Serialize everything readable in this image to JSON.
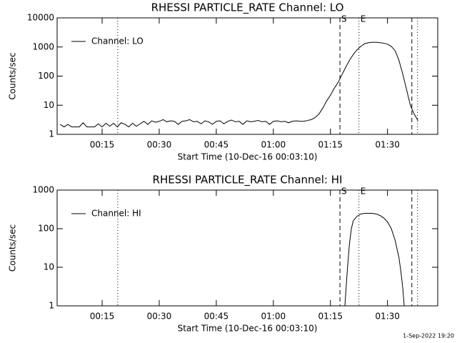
{
  "chart_data": [
    {
      "type": "line",
      "title": "RHESSI PARTICLE_RATE Channel: LO",
      "x_label": "Start Time (10-Dec-16 00:03:10)",
      "y_label": "Counts/sec",
      "log_y": true,
      "legend": "upper left",
      "xlim": [
        3.17,
        103.2
      ],
      "ylim": [
        1,
        10000
      ],
      "xticks": [
        {
          "value": 15,
          "label": "00:15"
        },
        {
          "value": 30,
          "label": "00:30"
        },
        {
          "value": 45,
          "label": "00:45"
        },
        {
          "value": 60,
          "label": "01:00"
        },
        {
          "value": 75,
          "label": "01:15"
        },
        {
          "value": 90,
          "label": "01:30"
        }
      ],
      "yticks": [
        1,
        10,
        100,
        1000,
        10000
      ],
      "markers": [
        {
          "x": 19.1,
          "style": "dotted"
        },
        {
          "x": 77.5,
          "style": "dashed",
          "label": "S"
        },
        {
          "x": 82.5,
          "style": "dotted",
          "label": "E"
        },
        {
          "x": 96.4,
          "style": "dashed"
        },
        {
          "x": 97.9,
          "style": "dotted"
        }
      ],
      "x": [
        4,
        5,
        6,
        7,
        8,
        9,
        10,
        11,
        12,
        13,
        14,
        15,
        16,
        17,
        18,
        19,
        20,
        21,
        22,
        23,
        24,
        25,
        26,
        27,
        28,
        29,
        30,
        31,
        32,
        33,
        34,
        35,
        36,
        37,
        38,
        39,
        40,
        41,
        42,
        43,
        44,
        45,
        46,
        47,
        48,
        49,
        50,
        51,
        52,
        53,
        54,
        55,
        56,
        57,
        58,
        59,
        60,
        61,
        62,
        63,
        64,
        65,
        66,
        67,
        68,
        69,
        70,
        71,
        72,
        73,
        74,
        75,
        76,
        77,
        78,
        79,
        80,
        81,
        82,
        83,
        84,
        85,
        86,
        87,
        88,
        89,
        90,
        91,
        92,
        93,
        94,
        95,
        96,
        97,
        98
      ],
      "series": [
        {
          "name": "Channel: LO",
          "color": "#000000",
          "values": [
            2.2,
            1.8,
            2.2,
            1.8,
            1.8,
            1.8,
            2.5,
            1.8,
            1.8,
            1.8,
            2.3,
            1.8,
            2.4,
            1.9,
            2.4,
            1.8,
            2.5,
            2.2,
            1.8,
            2.4,
            1.9,
            2.3,
            2.8,
            2.2,
            2.9,
            2.6,
            2.8,
            3.2,
            2.7,
            2.9,
            2.8,
            2.2,
            2.8,
            2.9,
            3.2,
            2.7,
            2.8,
            2.3,
            2.9,
            2.7,
            2.2,
            2.8,
            2.9,
            2.3,
            2.8,
            3.1,
            2.7,
            2.8,
            2.2,
            2.9,
            2.7,
            2.8,
            3.0,
            2.7,
            2.8,
            2.2,
            2.8,
            2.9,
            2.7,
            2.8,
            2.5,
            2.8,
            2.9,
            2.8,
            2.8,
            3.0,
            3.2,
            3.8,
            5,
            8,
            14,
            22,
            38,
            60,
            110,
            200,
            350,
            550,
            800,
            1050,
            1300,
            1400,
            1450,
            1450,
            1400,
            1350,
            1250,
            1050,
            750,
            350,
            120,
            35,
            10,
            5,
            3
          ]
        }
      ]
    },
    {
      "type": "line",
      "title": "RHESSI PARTICLE_RATE Channel: HI",
      "x_label": "Start Time (10-Dec-16 00:03:10)",
      "y_label": "Counts/sec",
      "log_y": true,
      "legend": "upper left",
      "xlim": [
        3.17,
        103.2
      ],
      "ylim": [
        1,
        1000
      ],
      "xticks": [
        {
          "value": 15,
          "label": "00:15"
        },
        {
          "value": 30,
          "label": "00:30"
        },
        {
          "value": 45,
          "label": "00:45"
        },
        {
          "value": 60,
          "label": "01:00"
        },
        {
          "value": 75,
          "label": "01:15"
        },
        {
          "value": 90,
          "label": "01:30"
        }
      ],
      "yticks": [
        1,
        10,
        100,
        1000
      ],
      "markers": [
        {
          "x": 19.1,
          "style": "dotted"
        },
        {
          "x": 77.5,
          "style": "dashed",
          "label": "S"
        },
        {
          "x": 82.5,
          "style": "dotted",
          "label": "E"
        },
        {
          "x": 96.4,
          "style": "dashed"
        },
        {
          "x": 97.9,
          "style": "dotted"
        }
      ],
      "x": [
        78.8,
        79,
        79.5,
        80,
        80.5,
        81,
        82,
        83,
        84,
        85,
        86,
        87,
        88,
        89,
        90,
        91,
        92,
        93,
        93.5,
        94,
        94.4
      ],
      "series": [
        {
          "name": "Channel: HI",
          "color": "#000000",
          "values": [
            1,
            2,
            10,
            40,
            100,
            160,
            210,
            240,
            250,
            250,
            250,
            240,
            220,
            190,
            150,
            100,
            50,
            18,
            8,
            3,
            1
          ]
        }
      ]
    }
  ],
  "footer": "1-Sep-2022 19:20"
}
